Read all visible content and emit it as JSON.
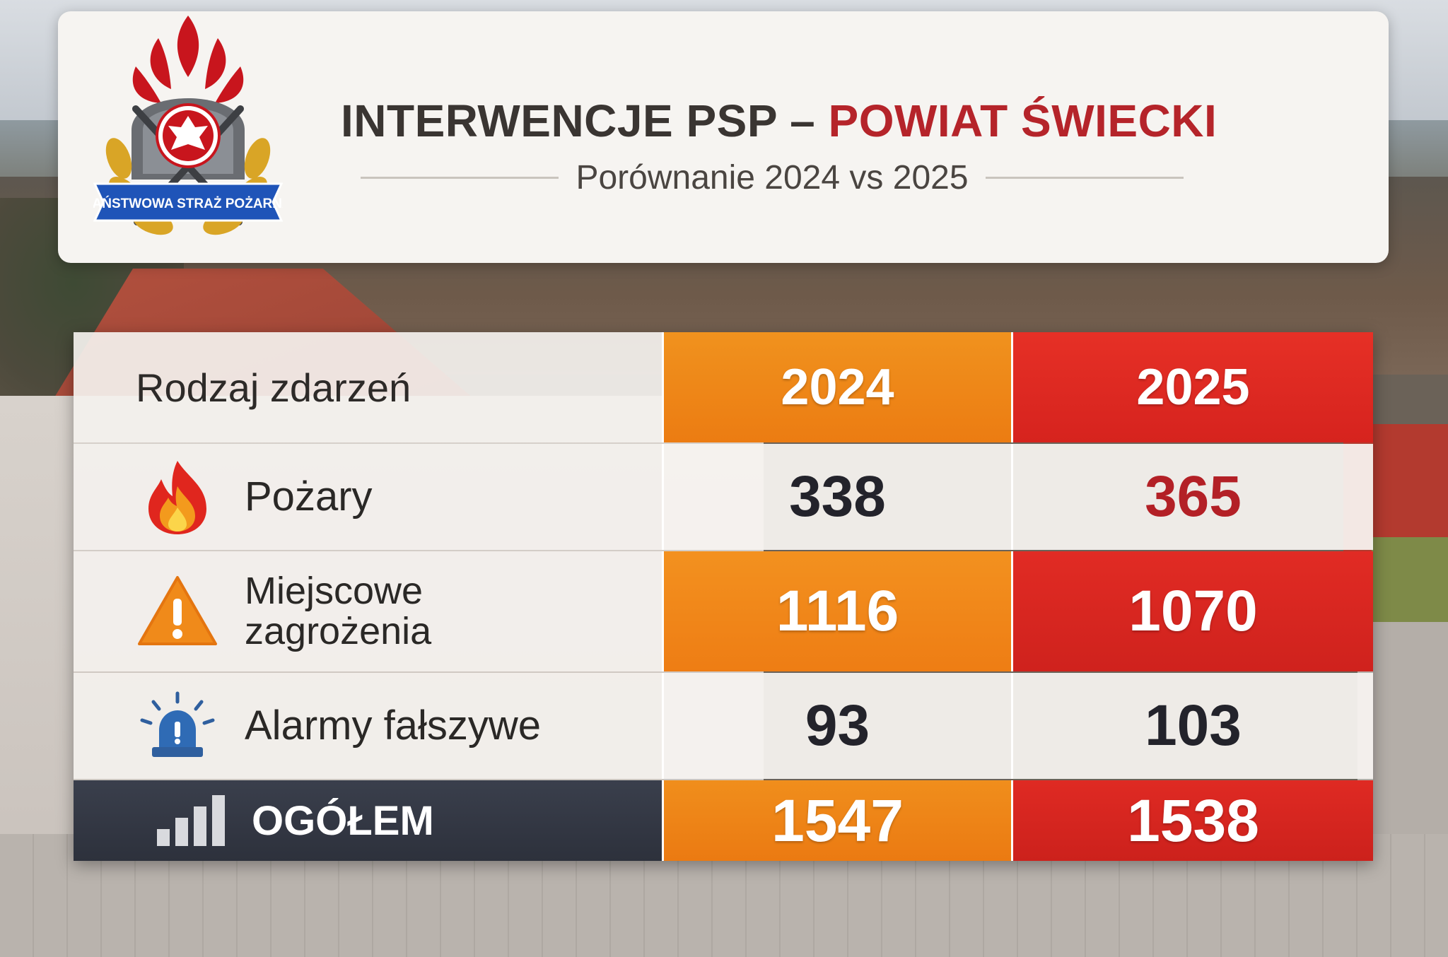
{
  "header": {
    "logo": {
      "name": "psp-logo",
      "text": "PAŃSTWOWA STRAŻ POŻARNA"
    },
    "title_main": "INTERWENCJE PSP – ",
    "title_accent": "POWIAT ŚWIECKI",
    "subtitle": "Porównanie 2024 vs 2025"
  },
  "table": {
    "header_label": "Rodzaj zdarzeń",
    "years": [
      "2024",
      "2025"
    ],
    "rows": [
      {
        "label": "Pożary",
        "icon": "fire-icon",
        "v2024": "338",
        "v2025": "365"
      },
      {
        "label_line1": "Miejscowe",
        "label_line2": "zagrożenia",
        "icon": "warning-icon",
        "v2024": "1116",
        "v2025": "1070"
      },
      {
        "label": "Alarmy fałszywe",
        "icon": "siren-icon",
        "v2024": "93",
        "v2025": "103"
      }
    ],
    "total": {
      "label": "OGÓŁEM",
      "icon": "bar-chart-icon",
      "v2024": "1547",
      "v2025": "1538"
    }
  },
  "colors": {
    "accent_red": "#b5242a",
    "orange_2024": "#ee7d14",
    "red_2025": "#d6231e",
    "total_label_bg": "#2d313c"
  },
  "chart_data": {
    "type": "table",
    "title": "INTERWENCJE PSP – POWIAT ŚWIECKI",
    "subtitle": "Porównanie 2024 vs 2025",
    "columns": [
      "Rodzaj zdarzeń",
      "2024",
      "2025"
    ],
    "categories": [
      "Pożary",
      "Miejscowe zagrożenia",
      "Alarmy fałszywe",
      "OGÓŁEM"
    ],
    "series": [
      {
        "name": "2024",
        "values": [
          338,
          1116,
          93,
          1547
        ]
      },
      {
        "name": "2025",
        "values": [
          365,
          1070,
          103,
          1538
        ]
      }
    ]
  }
}
